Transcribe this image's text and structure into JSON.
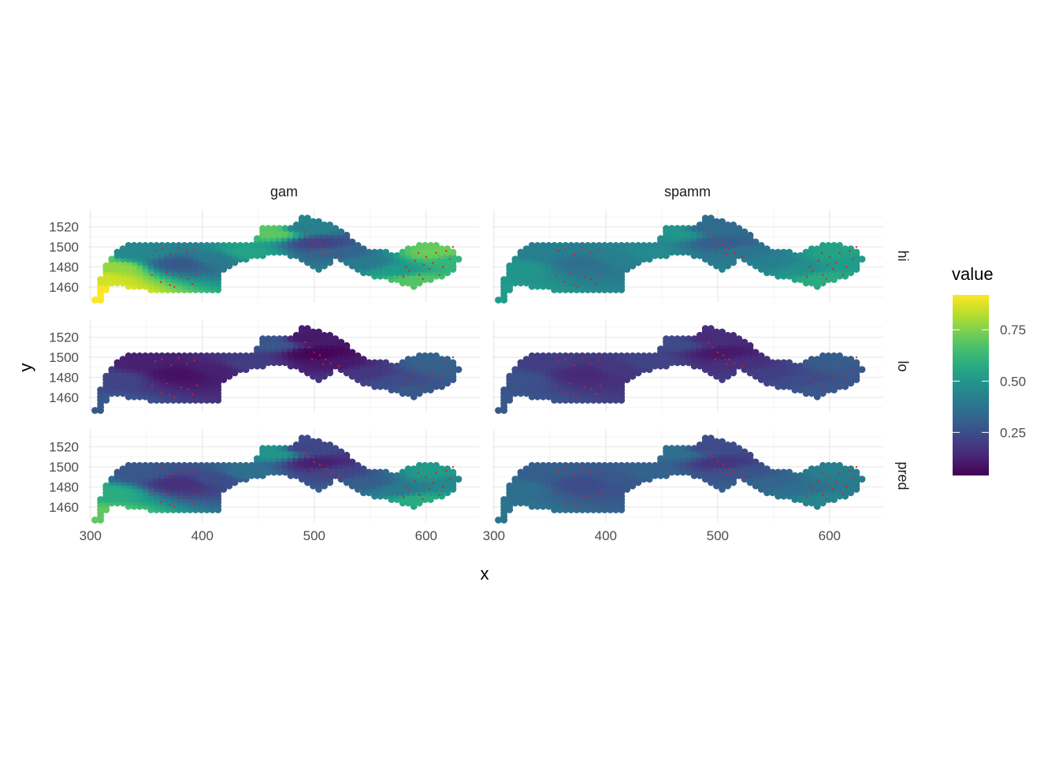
{
  "chart_data": {
    "type": "scatter",
    "subtype": "faceted spatial point map (facet_grid)",
    "xlabel": "x",
    "ylabel": "y",
    "xlim": [
      298,
      648
    ],
    "ylim": [
      1445,
      1537
    ],
    "x_ticks": [
      300,
      400,
      500,
      600
    ],
    "x_tick_labels": [
      "300",
      "400",
      "500",
      "600"
    ],
    "y_ticks": [
      1460,
      1480,
      1500,
      1520
    ],
    "y_tick_labels": [
      "1460",
      "1480",
      "1500",
      "1520"
    ],
    "grid": true,
    "facet_columns": [
      "gam",
      "spamm"
    ],
    "facet_rows": [
      "hi",
      "lo",
      "pred"
    ],
    "legend": {
      "title": "value",
      "placement": "right",
      "colormap": "viridis",
      "range": [
        0.04,
        0.92
      ],
      "ticks": [
        0.25,
        0.5,
        0.75
      ],
      "tick_labels": [
        "0.25",
        "0.50",
        "0.75"
      ]
    },
    "colors": {
      "observation_points": "#e41a1c",
      "grid_major": "#ebebeb",
      "grid_minor": "#f5f5f5",
      "axis_text": "#4d4d4d"
    },
    "region_vertices": [
      [
        303,
        1446
      ],
      [
        312,
        1482
      ],
      [
        322,
        1494
      ],
      [
        333,
        1501
      ],
      [
        332,
        1503
      ],
      [
        448,
        1503
      ],
      [
        451,
        1520
      ],
      [
        480,
        1521
      ],
      [
        491,
        1531
      ],
      [
        520,
        1520
      ],
      [
        545,
        1498
      ],
      [
        573,
        1494
      ],
      [
        588,
        1500
      ],
      [
        600,
        1503
      ],
      [
        620,
        1500
      ],
      [
        630,
        1488
      ],
      [
        622,
        1472
      ],
      [
        600,
        1466
      ],
      [
        588,
        1460
      ],
      [
        570,
        1466
      ],
      [
        545,
        1472
      ],
      [
        520,
        1490
      ],
      [
        505,
        1476
      ],
      [
        487,
        1487
      ],
      [
        470,
        1494
      ],
      [
        447,
        1489
      ],
      [
        436,
        1486
      ],
      [
        418,
        1476
      ],
      [
        417,
        1456
      ],
      [
        355,
        1456
      ],
      [
        336,
        1460
      ],
      [
        318,
        1462
      ],
      [
        310,
        1446
      ]
    ],
    "value_anchors": {
      "gam.hi": [
        [
          305,
          1455,
          0.92
        ],
        [
          310,
          1470,
          0.86
        ],
        [
          320,
          1480,
          0.78
        ],
        [
          345,
          1495,
          0.45
        ],
        [
          380,
          1485,
          0.28
        ],
        [
          410,
          1490,
          0.4
        ],
        [
          440,
          1495,
          0.55
        ],
        [
          465,
          1515,
          0.7
        ],
        [
          490,
          1520,
          0.42
        ],
        [
          503,
          1505,
          0.22
        ],
        [
          520,
          1495,
          0.32
        ],
        [
          545,
          1485,
          0.4
        ],
        [
          575,
          1478,
          0.52
        ],
        [
          590,
          1468,
          0.68
        ],
        [
          610,
          1495,
          0.72
        ],
        [
          625,
          1488,
          0.62
        ]
      ],
      "gam.lo": [
        [
          305,
          1455,
          0.28
        ],
        [
          320,
          1480,
          0.22
        ],
        [
          345,
          1495,
          0.12
        ],
        [
          380,
          1485,
          0.08
        ],
        [
          410,
          1490,
          0.12
        ],
        [
          440,
          1495,
          0.2
        ],
        [
          465,
          1515,
          0.28
        ],
        [
          490,
          1520,
          0.1
        ],
        [
          503,
          1505,
          0.05
        ],
        [
          520,
          1495,
          0.1
        ],
        [
          545,
          1485,
          0.18
        ],
        [
          575,
          1478,
          0.24
        ],
        [
          590,
          1468,
          0.28
        ],
        [
          610,
          1495,
          0.32
        ],
        [
          625,
          1488,
          0.3
        ]
      ],
      "gam.pred": [
        [
          305,
          1455,
          0.7
        ],
        [
          315,
          1475,
          0.58
        ],
        [
          345,
          1495,
          0.28
        ],
        [
          380,
          1485,
          0.16
        ],
        [
          410,
          1490,
          0.24
        ],
        [
          440,
          1495,
          0.36
        ],
        [
          465,
          1515,
          0.5
        ],
        [
          490,
          1520,
          0.22
        ],
        [
          503,
          1505,
          0.12
        ],
        [
          520,
          1495,
          0.22
        ],
        [
          545,
          1485,
          0.3
        ],
        [
          575,
          1478,
          0.4
        ],
        [
          592,
          1468,
          0.58
        ],
        [
          610,
          1495,
          0.52
        ],
        [
          625,
          1488,
          0.45
        ]
      ],
      "spamm.hi": [
        [
          305,
          1455,
          0.52
        ],
        [
          320,
          1480,
          0.5
        ],
        [
          345,
          1495,
          0.42
        ],
        [
          380,
          1485,
          0.36
        ],
        [
          410,
          1490,
          0.42
        ],
        [
          440,
          1495,
          0.46
        ],
        [
          465,
          1515,
          0.5
        ],
        [
          490,
          1520,
          0.34
        ],
        [
          503,
          1505,
          0.3
        ],
        [
          520,
          1495,
          0.38
        ],
        [
          545,
          1485,
          0.42
        ],
        [
          575,
          1478,
          0.48
        ],
        [
          592,
          1470,
          0.58
        ],
        [
          610,
          1495,
          0.55
        ],
        [
          625,
          1488,
          0.52
        ]
      ],
      "spamm.lo": [
        [
          305,
          1455,
          0.28
        ],
        [
          320,
          1480,
          0.26
        ],
        [
          345,
          1495,
          0.2
        ],
        [
          380,
          1485,
          0.14
        ],
        [
          410,
          1490,
          0.18
        ],
        [
          440,
          1495,
          0.22
        ],
        [
          465,
          1515,
          0.24
        ],
        [
          490,
          1520,
          0.15
        ],
        [
          503,
          1505,
          0.1
        ],
        [
          520,
          1495,
          0.16
        ],
        [
          545,
          1485,
          0.2
        ],
        [
          575,
          1478,
          0.24
        ],
        [
          592,
          1470,
          0.28
        ],
        [
          610,
          1495,
          0.3
        ],
        [
          625,
          1488,
          0.28
        ]
      ],
      "spamm.pred": [
        [
          305,
          1455,
          0.38
        ],
        [
          320,
          1480,
          0.36
        ],
        [
          345,
          1495,
          0.3
        ],
        [
          380,
          1485,
          0.24
        ],
        [
          410,
          1490,
          0.28
        ],
        [
          440,
          1495,
          0.32
        ],
        [
          465,
          1515,
          0.36
        ],
        [
          490,
          1520,
          0.24
        ],
        [
          503,
          1505,
          0.18
        ],
        [
          520,
          1495,
          0.26
        ],
        [
          545,
          1485,
          0.32
        ],
        [
          575,
          1478,
          0.36
        ],
        [
          592,
          1470,
          0.44
        ],
        [
          610,
          1495,
          0.42
        ],
        [
          625,
          1488,
          0.4
        ]
      ]
    },
    "observation_points": [
      [
        358,
        1496
      ],
      [
        364,
        1498
      ],
      [
        372,
        1492
      ],
      [
        379,
        1499
      ],
      [
        386,
        1494
      ],
      [
        393,
        1497
      ],
      [
        368,
        1474
      ],
      [
        381,
        1470
      ],
      [
        363,
        1465
      ],
      [
        371,
        1462
      ],
      [
        375,
        1460
      ],
      [
        387,
        1468
      ],
      [
        395,
        1472
      ],
      [
        355,
        1472
      ],
      [
        391,
        1463
      ],
      [
        492,
        1515
      ],
      [
        496,
        1510
      ],
      [
        500,
        1505
      ],
      [
        505,
        1502
      ],
      [
        510,
        1498
      ],
      [
        498,
        1498
      ],
      [
        515,
        1494
      ],
      [
        522,
        1491
      ],
      [
        508,
        1493
      ],
      [
        582,
        1480
      ],
      [
        585,
        1476
      ],
      [
        590,
        1486
      ],
      [
        594,
        1472
      ],
      [
        598,
        1482
      ],
      [
        600,
        1490
      ],
      [
        603,
        1478
      ],
      [
        606,
        1484
      ],
      [
        609,
        1494
      ],
      [
        612,
        1472
      ],
      [
        615,
        1480
      ],
      [
        618,
        1496
      ],
      [
        621,
        1488
      ],
      [
        597,
        1468
      ],
      [
        624,
        1500
      ],
      [
        593,
        1494
      ],
      [
        580,
        1470
      ]
    ]
  }
}
